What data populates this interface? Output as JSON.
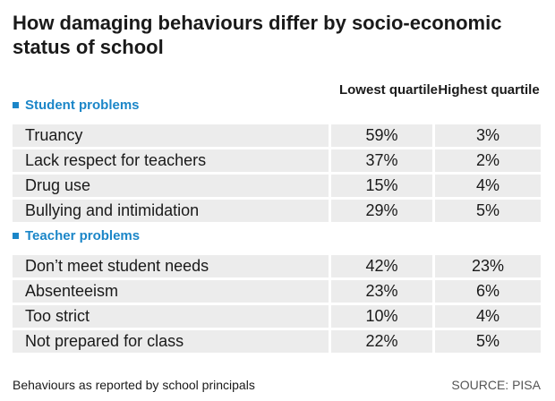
{
  "title": "How damaging behaviours differ by socio-economic status of school",
  "columns": {
    "lowest": "Lowest quartile",
    "highest": "Highest quartile"
  },
  "sections": [
    {
      "label": "Student problems",
      "rows": [
        {
          "label": "Truancy",
          "lowest": "59%",
          "highest": "3%"
        },
        {
          "label": "Lack respect for teachers",
          "lowest": "37%",
          "highest": "2%"
        },
        {
          "label": "Drug use",
          "lowest": "15%",
          "highest": "4%"
        },
        {
          "label": "Bullying and intimidation",
          "lowest": "29%",
          "highest": "5%"
        }
      ]
    },
    {
      "label": "Teacher problems",
      "rows": [
        {
          "label": "Don’t meet student needs",
          "lowest": "42%",
          "highest": "23%"
        },
        {
          "label": "Absenteeism",
          "lowest": "23%",
          "highest": "6%"
        },
        {
          "label": "Too strict",
          "lowest": "10%",
          "highest": "4%"
        },
        {
          "label": "Not prepared for class",
          "lowest": "22%",
          "highest": "5%"
        }
      ]
    }
  ],
  "footer": "Behaviours as reported by school principals",
  "source": "SOURCE: PISA",
  "colors": {
    "accent": "#1b86c8",
    "row_bg": "#ececec"
  },
  "chart_data": {
    "type": "table",
    "title": "How damaging behaviours differ by socio-economic status of school",
    "columns": [
      "Lowest quartile",
      "Highest quartile"
    ],
    "groups": [
      {
        "name": "Student problems",
        "rows": [
          {
            "label": "Truancy",
            "values": [
              59,
              3
            ]
          },
          {
            "label": "Lack respect for teachers",
            "values": [
              37,
              2
            ]
          },
          {
            "label": "Drug use",
            "values": [
              15,
              4
            ]
          },
          {
            "label": "Bullying and intimidation",
            "values": [
              29,
              5
            ]
          }
        ]
      },
      {
        "name": "Teacher problems",
        "rows": [
          {
            "label": "Don’t meet student needs",
            "values": [
              42,
              23
            ]
          },
          {
            "label": "Absenteeism",
            "values": [
              23,
              6
            ]
          },
          {
            "label": "Too strict",
            "values": [
              10,
              4
            ]
          },
          {
            "label": "Not prepared for class",
            "values": [
              22,
              5
            ]
          }
        ]
      }
    ],
    "unit": "%"
  }
}
